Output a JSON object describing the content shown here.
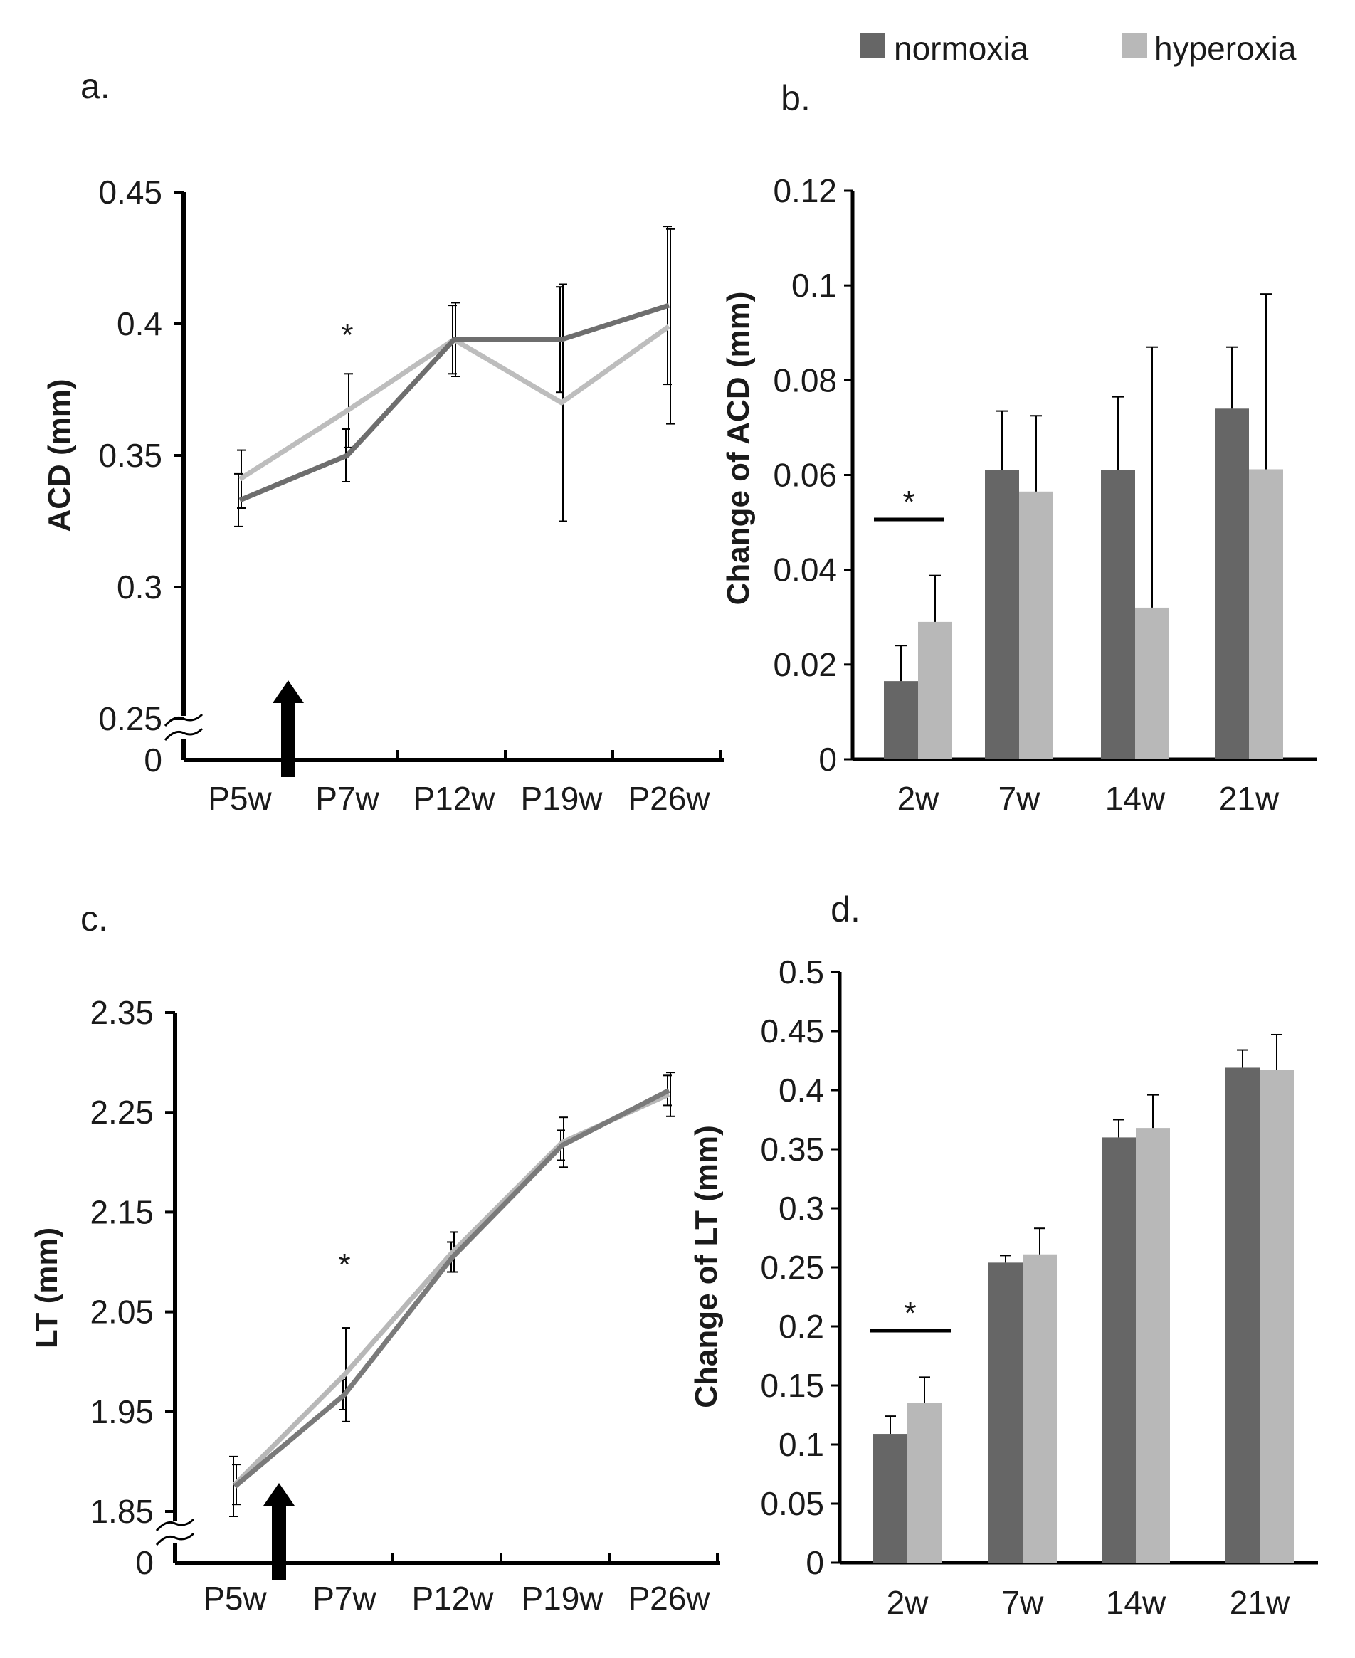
{
  "legend": {
    "items": [
      {
        "name": "normoxia",
        "color": "#666666"
      },
      {
        "name": "hyperoxia",
        "color": "#b8b8b8"
      }
    ]
  },
  "chart_data": [
    {
      "id": "a",
      "panel_label": "a.",
      "type": "line",
      "ylabel": "ACD (mm)",
      "categories": [
        "P5w",
        "P7w",
        "P12w",
        "P19w",
        "P26w"
      ],
      "y_ticks": [
        "0",
        "0.25",
        "0.3",
        "0.35",
        "0.4",
        "0.45"
      ],
      "ylim": [
        0.2,
        0.45
      ],
      "axis_break": true,
      "axis_break_label": "0",
      "arrow_between": [
        "P5w",
        "P7w"
      ],
      "significance": {
        "category": "P7w",
        "text": "*"
      },
      "series": [
        {
          "name": "normoxia",
          "color": "#6e6e6e",
          "values": [
            0.333,
            0.35,
            0.394,
            0.394,
            0.407
          ],
          "errors": [
            0.01,
            0.01,
            0.013,
            0.02,
            0.03
          ]
        },
        {
          "name": "hyperoxia",
          "color": "#bdbdbd",
          "values": [
            0.341,
            0.367,
            0.394,
            0.37,
            0.399
          ],
          "errors": [
            0.011,
            0.014,
            0.014,
            0.045,
            0.037
          ]
        }
      ]
    },
    {
      "id": "b",
      "panel_label": "b.",
      "type": "bar",
      "ylabel": "Change of ACD (mm)",
      "categories": [
        "2w",
        "7w",
        "14w",
        "21w"
      ],
      "y_ticks": [
        "0",
        "0.02",
        "0.04",
        "0.06",
        "0.08",
        "0.1",
        "0.12"
      ],
      "ylim": [
        0,
        0.12
      ],
      "significance": {
        "category": "2w",
        "text": "*"
      },
      "series": [
        {
          "name": "normoxia",
          "color": "#666666",
          "values": [
            0.0165,
            0.061,
            0.061,
            0.074
          ],
          "errors": [
            0.0075,
            0.0125,
            0.0155,
            0.013
          ]
        },
        {
          "name": "hyperoxia",
          "color": "#b8b8b8",
          "values": [
            0.029,
            0.0565,
            0.032,
            0.0612
          ],
          "errors": [
            0.0098,
            0.016,
            0.055,
            0.037
          ]
        }
      ]
    },
    {
      "id": "c",
      "panel_label": "c.",
      "type": "line",
      "ylabel": "LT (mm)",
      "categories": [
        "P5w",
        "P7w",
        "P12w",
        "P19w",
        "P26w"
      ],
      "y_ticks": [
        "0",
        "1.85",
        "1.95",
        "2.05",
        "2.15",
        "2.25",
        "2.35"
      ],
      "ylim": [
        1.77,
        2.35
      ],
      "axis_break": true,
      "axis_break_label": "0",
      "arrow_between": [
        "P5w",
        "P7w"
      ],
      "significance": {
        "category": "P7w",
        "text": "*"
      },
      "series": [
        {
          "name": "normoxia",
          "color": "#7a7a7a",
          "values": [
            1.875,
            1.967,
            2.105,
            2.217,
            2.272
          ],
          "errors": [
            0.03,
            0.015,
            0.015,
            0.015,
            0.015
          ]
        },
        {
          "name": "hyperoxia",
          "color": "#b8b8b8",
          "values": [
            1.877,
            1.987,
            2.11,
            2.22,
            2.268
          ],
          "errors": [
            0.02,
            0.047,
            0.02,
            0.025,
            0.022
          ]
        }
      ]
    },
    {
      "id": "d",
      "panel_label": "d.",
      "type": "bar",
      "ylabel": "Change of LT  (mm)",
      "categories": [
        "2w",
        "7w",
        "14w",
        "21w"
      ],
      "y_ticks": [
        "0",
        "0.05",
        "0.1",
        "0.15",
        "0.2",
        "0.25",
        "0.3",
        "0.35",
        "0.4",
        "0.45",
        "0.5"
      ],
      "ylim": [
        0,
        0.5
      ],
      "significance": {
        "category": "2w",
        "text": "*"
      },
      "series": [
        {
          "name": "normoxia",
          "color": "#666666",
          "values": [
            0.109,
            0.254,
            0.36,
            0.419
          ],
          "errors": [
            0.015,
            0.006,
            0.015,
            0.015
          ]
        },
        {
          "name": "hyperoxia",
          "color": "#b8b8b8",
          "values": [
            0.135,
            0.261,
            0.368,
            0.417
          ],
          "errors": [
            0.022,
            0.022,
            0.028,
            0.03
          ]
        }
      ]
    }
  ]
}
